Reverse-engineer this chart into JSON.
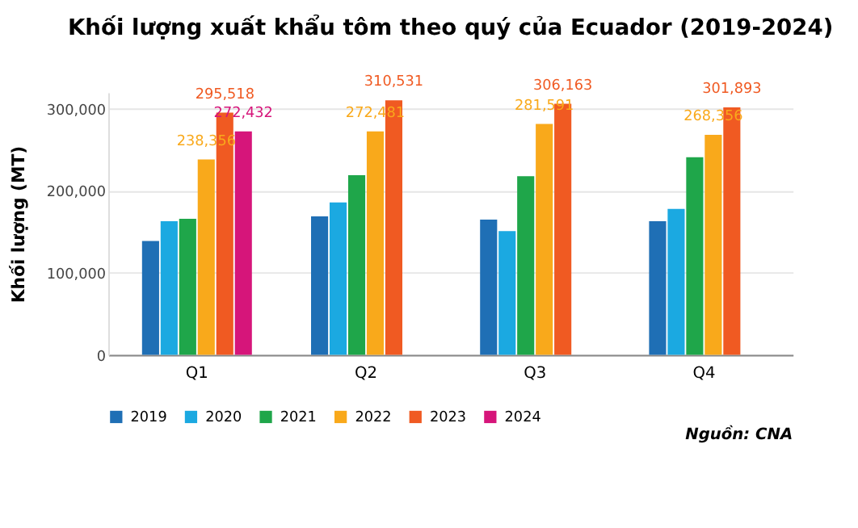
{
  "chart_data": {
    "type": "bar",
    "title": "Khối lượng xuất khẩu tôm theo quý của Ecuador (2019-2024)",
    "ylabel": "Khối lượng (MT)",
    "categories": [
      "Q1",
      "Q2",
      "Q3",
      "Q4"
    ],
    "series": [
      {
        "name": "2019",
        "color": "#1f6fb5",
        "values": [
          139000,
          169000,
          165000,
          163000
        ]
      },
      {
        "name": "2020",
        "color": "#1ba9e1",
        "values": [
          163000,
          186000,
          151000,
          178000
        ]
      },
      {
        "name": "2021",
        "color": "#1fa64a",
        "values": [
          166000,
          219000,
          218000,
          241000
        ]
      },
      {
        "name": "2022",
        "color": "#f9a91b",
        "values": [
          238356,
          272481,
          281591,
          268356
        ],
        "value_labels": [
          "238,356",
          "272,481",
          "281,591",
          "268,356"
        ]
      },
      {
        "name": "2023",
        "color": "#f05a22",
        "values": [
          295518,
          310531,
          306163,
          301893
        ],
        "value_labels": [
          "295,518",
          "310,531",
          "306,163",
          "301,893"
        ]
      },
      {
        "name": "2024",
        "color": "#d6157a",
        "values": [
          272432,
          null,
          null,
          null
        ],
        "value_labels": [
          "272,432",
          null,
          null,
          null
        ]
      }
    ],
    "ylim": [
      0,
      320000
    ],
    "yticks": [
      0,
      {
        "value": 100000,
        "label": "100,000"
      },
      {
        "value": 200000,
        "label": "200,000"
      },
      {
        "value": 300000,
        "label": "300,000"
      }
    ],
    "grid": "y",
    "legend": "bottom",
    "annotations": [
      "Nguồn: CNA"
    ]
  }
}
